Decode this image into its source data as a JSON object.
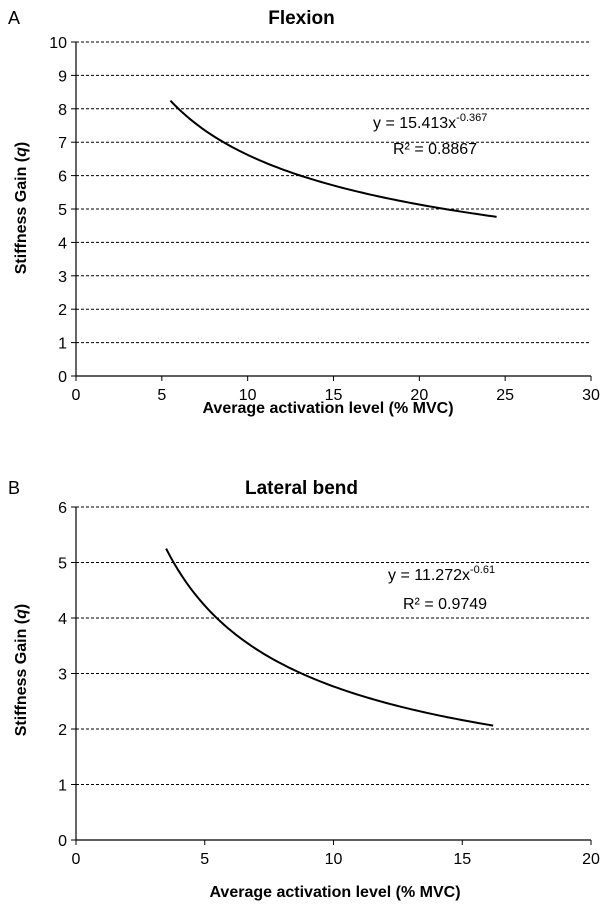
{
  "chart_data": [
    {
      "panel": "A",
      "type": "line",
      "title": "Flexion",
      "xlabel": "Average activation level (% MVC)",
      "ylabel_main": "Stiffness Gain (",
      "ylabel_var": "q",
      "ylabel_end": ")",
      "xlim": [
        0,
        30
      ],
      "ylim": [
        0,
        10
      ],
      "xticks": [
        0,
        5,
        10,
        15,
        20,
        25,
        30
      ],
      "yticks": [
        0,
        1,
        2,
        3,
        4,
        5,
        6,
        7,
        8,
        9,
        10
      ],
      "grid": "horizontal dashed",
      "curve": {
        "coefficient": 15.413,
        "exponent": -0.367,
        "x_start": 5.5,
        "x_end": 24.5
      },
      "equation_base": "y = 15.413x",
      "equation_exp": "-0.367",
      "r2_label": "R² = 0.8867",
      "color": "#000000"
    },
    {
      "panel": "B",
      "type": "line",
      "title": "Lateral bend",
      "xlabel": "Average activation level (% MVC)",
      "ylabel_main": "Stiffness Gain (",
      "ylabel_var": "q",
      "ylabel_end": ")",
      "xlim": [
        0,
        20
      ],
      "ylim": [
        0,
        6
      ],
      "xticks": [
        0,
        5,
        10,
        15,
        20
      ],
      "yticks": [
        0,
        1,
        2,
        3,
        4,
        5,
        6
      ],
      "grid": "horizontal dashed",
      "curve": {
        "coefficient": 11.272,
        "exponent": -0.61,
        "x_start": 3.5,
        "x_end": 16.2
      },
      "equation_base": "y = 11.272x",
      "equation_exp": "-0.61",
      "r2_label": "R² = 0.9749",
      "color": "#000000"
    }
  ]
}
